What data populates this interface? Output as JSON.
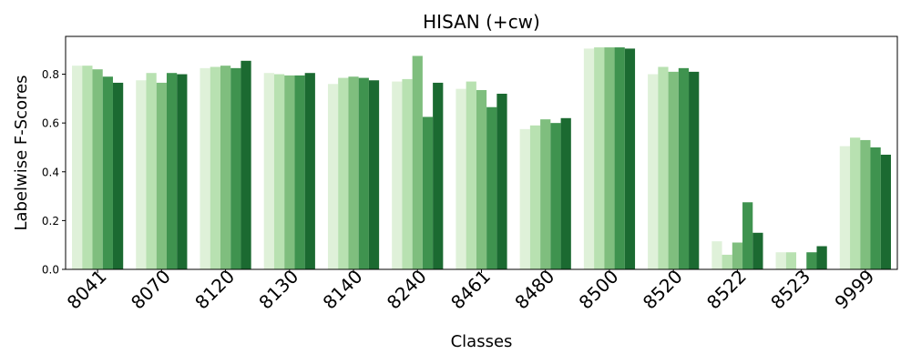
{
  "chart_data": {
    "type": "bar",
    "title": "HISAN (+cw)",
    "xlabel": "Classes",
    "ylabel": "Labelwise F-Scores",
    "categories": [
      "8041",
      "8070",
      "8120",
      "8130",
      "8140",
      "8240",
      "8461",
      "8480",
      "8500",
      "8520",
      "8522",
      "8523",
      "9999"
    ],
    "ylim": [
      0,
      0.955
    ],
    "yticks": [
      "0.0",
      "0.2",
      "0.4",
      "0.6",
      "0.8"
    ],
    "grid": false,
    "legend": "none",
    "series": [
      {
        "values": [
          0.835,
          0.775,
          0.825,
          0.805,
          0.76,
          0.77,
          0.74,
          0.575,
          0.905,
          0.8,
          0.115,
          0.07,
          0.505
        ]
      },
      {
        "values": [
          0.835,
          0.805,
          0.83,
          0.8,
          0.785,
          0.78,
          0.77,
          0.59,
          0.91,
          0.83,
          0.06,
          0.07,
          0.54
        ]
      },
      {
        "values": [
          0.82,
          0.765,
          0.835,
          0.795,
          0.79,
          0.875,
          0.735,
          0.615,
          0.91,
          0.81,
          0.11,
          0.0,
          0.53
        ]
      },
      {
        "values": [
          0.79,
          0.805,
          0.825,
          0.795,
          0.785,
          0.625,
          0.665,
          0.6,
          0.91,
          0.825,
          0.275,
          0.07,
          0.5
        ]
      },
      {
        "values": [
          0.765,
          0.8,
          0.855,
          0.805,
          0.775,
          0.765,
          0.72,
          0.62,
          0.905,
          0.81,
          0.15,
          0.095,
          0.47
        ]
      }
    ],
    "colors": [
      "#dff1d9",
      "#b8e1b1",
      "#7fbe7e",
      "#3f934f",
      "#1b6a31"
    ]
  }
}
